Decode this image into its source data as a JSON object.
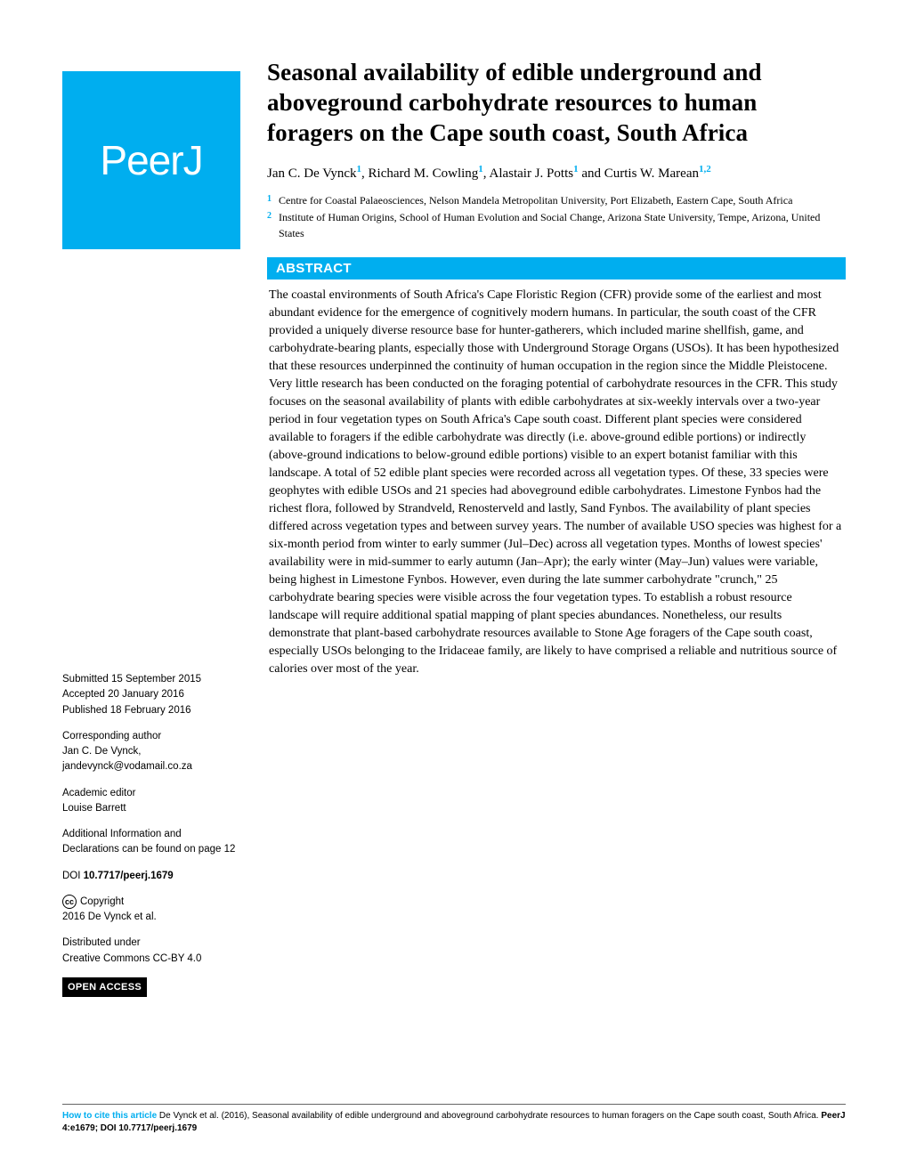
{
  "logo": {
    "text": "PeerJ"
  },
  "title": "Seasonal availability of edible underground and aboveground carbohydrate resources to human foragers on the Cape south coast, South Africa",
  "authors": {
    "a1": "Jan C. De Vynck",
    "s1": "1",
    "a2": "Richard M. Cowling",
    "s2": "1",
    "a3": "Alastair J. Potts",
    "s3": "1",
    "a4": "Curtis W. Marean",
    "s4": "1,2",
    "sep_and": " and "
  },
  "affiliations": [
    {
      "num": "1",
      "text": "Centre for Coastal Palaeosciences, Nelson Mandela Metropolitan University, Port Elizabeth, Eastern Cape, South Africa"
    },
    {
      "num": "2",
      "text": "Institute of Human Origins, School of Human Evolution and Social Change, Arizona State University, Tempe, Arizona, United States"
    }
  ],
  "abstract": {
    "label": "ABSTRACT",
    "body": "The coastal environments of South Africa's Cape Floristic Region (CFR) provide some of the earliest and most abundant evidence for the emergence of cognitively modern humans. In particular, the south coast of the CFR provided a uniquely diverse resource base for hunter-gatherers, which included marine shellfish, game, and carbohydrate-bearing plants, especially those with Underground Storage Organs (USOs). It has been hypothesized that these resources underpinned the continuity of human occupation in the region since the Middle Pleistocene. Very little research has been conducted on the foraging potential of carbohydrate resources in the CFR. This study focuses on the seasonal availability of plants with edible carbohydrates at six-weekly intervals over a two-year period in four vegetation types on South Africa's Cape south coast. Different plant species were considered available to foragers if the edible carbohydrate was directly (i.e. above-ground edible portions) or indirectly (above-ground indications to below-ground edible portions) visible to an expert botanist familiar with this landscape. A total of 52 edible plant species were recorded across all vegetation types. Of these, 33 species were geophytes with edible USOs and 21 species had aboveground edible carbohydrates. Limestone Fynbos had the richest flora, followed by Strandveld, Renosterveld and lastly, Sand Fynbos. The availability of plant species differed across vegetation types and between survey years. The number of available USO species was highest for a six-month period from winter to early summer (Jul–Dec) across all vegetation types. Months of lowest species' availability were in mid-summer to early autumn (Jan–Apr); the early winter (May–Jun) values were variable, being highest in Limestone Fynbos. However, even during the late summer carbohydrate \"crunch,\" 25 carbohydrate bearing species were visible across the four vegetation types. To establish a robust resource landscape will require additional spatial mapping of plant species abundances. Nonetheless, our results demonstrate that plant-based carbohydrate resources available to Stone Age foragers of the Cape south coast, especially USOs belonging to the Iridaceae family, are likely to have comprised a reliable and nutritious source of calories over most of the year."
  },
  "sidebar": {
    "submitted_label": "Submitted ",
    "submitted": "15 September 2015",
    "accepted_label": "Accepted ",
    "accepted": "20 January 2016",
    "published_label": "Published ",
    "published": "18 February 2016",
    "corresponding_label": "Corresponding author",
    "corresponding_name": "Jan C. De Vynck,",
    "corresponding_email": "jandevynck@vodamail.co.za",
    "editor_label": "Academic editor",
    "editor_name": "Louise Barrett",
    "additional_info": "Additional Information and Declarations can be found on page 12",
    "doi_label": "DOI ",
    "doi": "10.7717/peerj.1679",
    "cc_label": "cc",
    "copyright_label": "Copyright",
    "copyright_text": "2016 De Vynck et al.",
    "distributed_label": "Distributed under",
    "distributed_text": "Creative Commons CC-BY 4.0",
    "open_access": "OPEN ACCESS"
  },
  "footer": {
    "label": "How to cite this article ",
    "text": "De Vynck et al. (2016), Seasonal availability of edible underground and aboveground carbohydrate resources to human foragers on the Cape south coast, South Africa. ",
    "journal": "PeerJ 4:e1679; DOI 10.7717/peerj.1679"
  },
  "colors": {
    "accent": "#00aeef",
    "text": "#000000",
    "bg": "#ffffff"
  }
}
